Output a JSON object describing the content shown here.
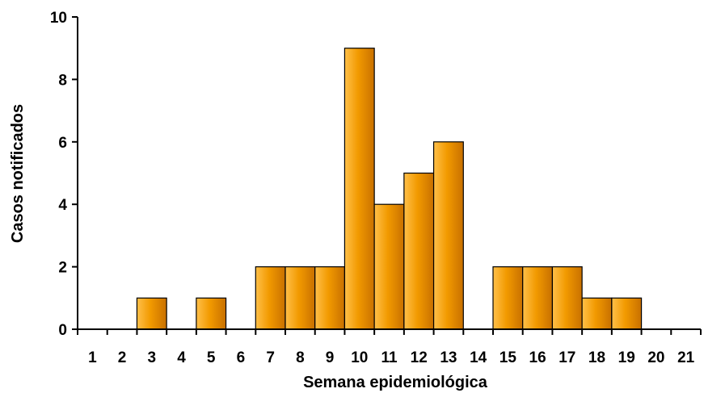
{
  "chart_data": {
    "type": "bar",
    "categories": [
      "1",
      "2",
      "3",
      "4",
      "5",
      "6",
      "7",
      "8",
      "9",
      "10",
      "11",
      "12",
      "13",
      "14",
      "15",
      "16",
      "17",
      "18",
      "19",
      "20",
      "21"
    ],
    "values": [
      0,
      0,
      1,
      0,
      1,
      0,
      2,
      2,
      2,
      9,
      4,
      5,
      6,
      0,
      2,
      2,
      2,
      1,
      1,
      0,
      0
    ],
    "xlabel": "Semana epidemiológica",
    "ylabel": "Casos notificados",
    "ylim": [
      0,
      10
    ],
    "yticks": [
      0,
      2,
      4,
      6,
      8,
      10
    ],
    "grid": false,
    "legend": "none",
    "colors": {
      "bar_light": "#ffc04a",
      "bar_mid": "#f29a00",
      "bar_dark": "#c87000",
      "bar_stroke": "#000000",
      "axis": "#000000"
    }
  }
}
